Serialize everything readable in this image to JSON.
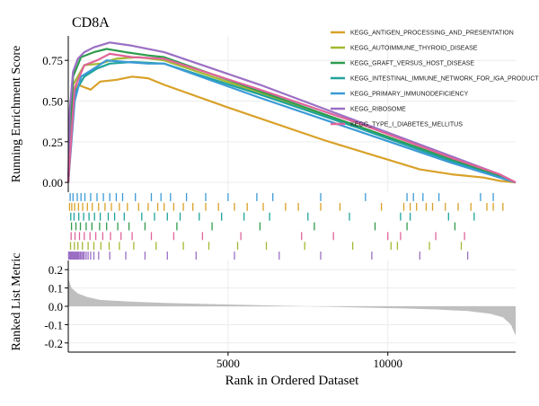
{
  "chart_data": {
    "type": "line",
    "title": "CD8A",
    "xlabel": "Rank in Ordered Dataset",
    "xlim": [
      0,
      14000
    ],
    "x_ticks": [
      5000,
      10000
    ],
    "x_tick_labels": [
      "5000",
      "10000"
    ],
    "top_panel": {
      "ylabel": "Running Enrichment Score",
      "ylim": [
        -0.06,
        0.9
      ],
      "y_ticks": [
        0,
        0.25,
        0.5,
        0.75
      ],
      "y_tick_labels": [
        "0.00",
        "0.25",
        "0.50",
        "0.75"
      ],
      "grid": true
    },
    "bottom_panel": {
      "ylabel": "Ranked List Metric",
      "ylim": [
        -0.25,
        0.25
      ],
      "y_ticks": [
        0.2,
        0.1,
        0.0,
        -0.1,
        -0.2
      ],
      "y_tick_labels": [
        "0.2",
        "0.1",
        "0.0",
        "-0.1",
        "-0.2"
      ],
      "metric_curve": {
        "x": [
          0,
          100,
          300,
          600,
          1000,
          2000,
          3000,
          5000,
          7000,
          9000,
          10500,
          11500,
          12500,
          13200,
          13600,
          13850,
          14000
        ],
        "y": [
          0.15,
          0.1,
          0.07,
          0.05,
          0.035,
          0.025,
          0.018,
          0.01,
          0.002,
          -0.006,
          -0.012,
          -0.017,
          -0.026,
          -0.04,
          -0.06,
          -0.1,
          -0.16
        ]
      }
    },
    "legend_position": "top-right",
    "series": [
      {
        "name": "KEGG_ANTIGEN_PROCESSING_AND_PRESENTATION",
        "color": "#d8a128",
        "x": [
          0,
          100,
          300,
          700,
          1000,
          1500,
          2000,
          2500,
          3000,
          5000,
          8000,
          11000,
          12000,
          13000,
          13500,
          14000
        ],
        "y": [
          0,
          0.5,
          0.6,
          0.57,
          0.62,
          0.63,
          0.65,
          0.64,
          0.6,
          0.46,
          0.26,
          0.08,
          0.05,
          0.03,
          0.01,
          0
        ]
      },
      {
        "name": "KEGG_AUTOIMMUNE_THYROID_DISEASE",
        "color": "#a5b832",
        "x": [
          0,
          150,
          500,
          1000,
          1500,
          2200,
          3000,
          6000,
          9000,
          12000,
          13500,
          14000
        ],
        "y": [
          0,
          0.6,
          0.72,
          0.73,
          0.76,
          0.77,
          0.75,
          0.55,
          0.35,
          0.14,
          0.04,
          0
        ]
      },
      {
        "name": "KEGG_GRAFT_VERSUS_HOST_DISEASE",
        "color": "#2e9c4e",
        "x": [
          0,
          150,
          400,
          800,
          1200,
          1800,
          2500,
          3000,
          6000,
          9000,
          12000,
          13500,
          14000
        ],
        "y": [
          0,
          0.65,
          0.77,
          0.8,
          0.82,
          0.8,
          0.78,
          0.77,
          0.56,
          0.35,
          0.14,
          0.04,
          0
        ]
      },
      {
        "name": "KEGG_INTESTINAL_IMMUNE_NETWORK_FOR_IGA_PRODUCTION",
        "color": "#1fa39a",
        "x": [
          0,
          200,
          500,
          900,
          1300,
          2000,
          3000,
          6000,
          9000,
          12000,
          13500,
          14000
        ],
        "y": [
          0,
          0.55,
          0.65,
          0.7,
          0.73,
          0.74,
          0.73,
          0.54,
          0.34,
          0.13,
          0.03,
          0
        ]
      },
      {
        "name": "KEGG_PRIMARY_IMMUNODEFICIENCY",
        "color": "#3b9ad6",
        "x": [
          0,
          200,
          400,
          800,
          1200,
          1800,
          2500,
          3000,
          6000,
          9000,
          12000,
          13500,
          14000
        ],
        "y": [
          0,
          0.5,
          0.65,
          0.7,
          0.75,
          0.74,
          0.73,
          0.73,
          0.52,
          0.32,
          0.12,
          0.03,
          0
        ]
      },
      {
        "name": "KEGG_RIBOSOME",
        "color": "#9b6fc4",
        "x": [
          0,
          50,
          150,
          300,
          500,
          800,
          1300,
          2000,
          3000,
          6000,
          9000,
          12000,
          13500,
          14000
        ],
        "y": [
          0,
          0.45,
          0.68,
          0.76,
          0.8,
          0.83,
          0.86,
          0.84,
          0.8,
          0.6,
          0.38,
          0.16,
          0.05,
          0
        ]
      },
      {
        "name": "KEGG_TYPE_I_DIABETES_MELLITUS",
        "color": "#e0649a",
        "x": [
          0,
          200,
          500,
          900,
          1300,
          2000,
          3000,
          6000,
          9000,
          12000,
          13500,
          14000
        ],
        "y": [
          0,
          0.58,
          0.72,
          0.75,
          0.79,
          0.77,
          0.76,
          0.57,
          0.37,
          0.15,
          0.05,
          0
        ]
      }
    ],
    "hit_rows": [
      {
        "series": "KEGG_PRIMARY_IMMUNODEFICIENCY",
        "color": "#3b9ad6",
        "positions": [
          60,
          150,
          280,
          400,
          520,
          700,
          900,
          1100,
          1300,
          1500,
          1700,
          2100,
          2600,
          2900,
          3200,
          3700,
          4300,
          5000,
          5900,
          6400,
          7900,
          9300,
          10600,
          10800,
          11100,
          11600,
          12900,
          13300
        ]
      },
      {
        "series": "KEGG_ANTIGEN_PROCESSING_AND_PRESENTATION",
        "color": "#d8a128",
        "positions": [
          40,
          110,
          200,
          320,
          450,
          600,
          750,
          950,
          1150,
          1350,
          1600,
          1850,
          2200,
          2500,
          2800,
          3000,
          3300,
          3600,
          3900,
          4300,
          4700,
          5200,
          5600,
          6100,
          6800,
          7200,
          7900,
          8500,
          9800,
          10500,
          10700,
          10900,
          11200,
          11400,
          11800,
          12200,
          12600,
          13100,
          13300,
          13600
        ]
      },
      {
        "series": "KEGG_INTESTINAL_IMMUNE_NETWORK_FOR_IGA_PRODUCTION",
        "color": "#1fa39a",
        "positions": [
          80,
          180,
          330,
          480,
          650,
          820,
          1000,
          1250,
          1450,
          1750,
          2300,
          2700,
          3100,
          3500,
          4100,
          4800,
          5500,
          6300,
          7500,
          8800,
          10400,
          10700,
          11900,
          12700
        ]
      },
      {
        "series": "KEGG_GRAFT_VERSUS_HOST_DISEASE",
        "color": "#2e9c4e",
        "positions": [
          100,
          240,
          380,
          560,
          740,
          980,
          1200,
          1550,
          1900,
          2400,
          3400,
          4500,
          6000,
          7700,
          9600,
          10600,
          12100
        ]
      },
      {
        "series": "KEGG_TYPE_I_DIABETES_MELLITUS",
        "color": "#e0649a",
        "positions": [
          90,
          210,
          350,
          500,
          680,
          860,
          1080,
          1320,
          1650,
          2000,
          2600,
          3300,
          4200,
          5400,
          7300,
          8300,
          10000,
          10400,
          11500,
          12400
        ]
      },
      {
        "series": "KEGG_AUTOIMMUNE_THYROID_DISEASE",
        "color": "#a5b832",
        "positions": [
          70,
          190,
          300,
          440,
          620,
          800,
          1020,
          1280,
          1600,
          2050,
          2750,
          3600,
          4400,
          5300,
          6200,
          7400,
          8900,
          10100,
          10300,
          11300,
          12300
        ]
      },
      {
        "series": "KEGG_RIBOSOME",
        "color": "#9b6fc4",
        "positions": [
          10,
          30,
          50,
          70,
          90,
          110,
          130,
          150,
          175,
          200,
          225,
          250,
          280,
          310,
          340,
          380,
          420,
          460,
          500,
          560,
          620,
          700,
          800,
          950,
          1300,
          1800,
          2400,
          3100,
          4000,
          5200,
          6600,
          7900,
          9500,
          11000,
          12500
        ]
      }
    ]
  }
}
